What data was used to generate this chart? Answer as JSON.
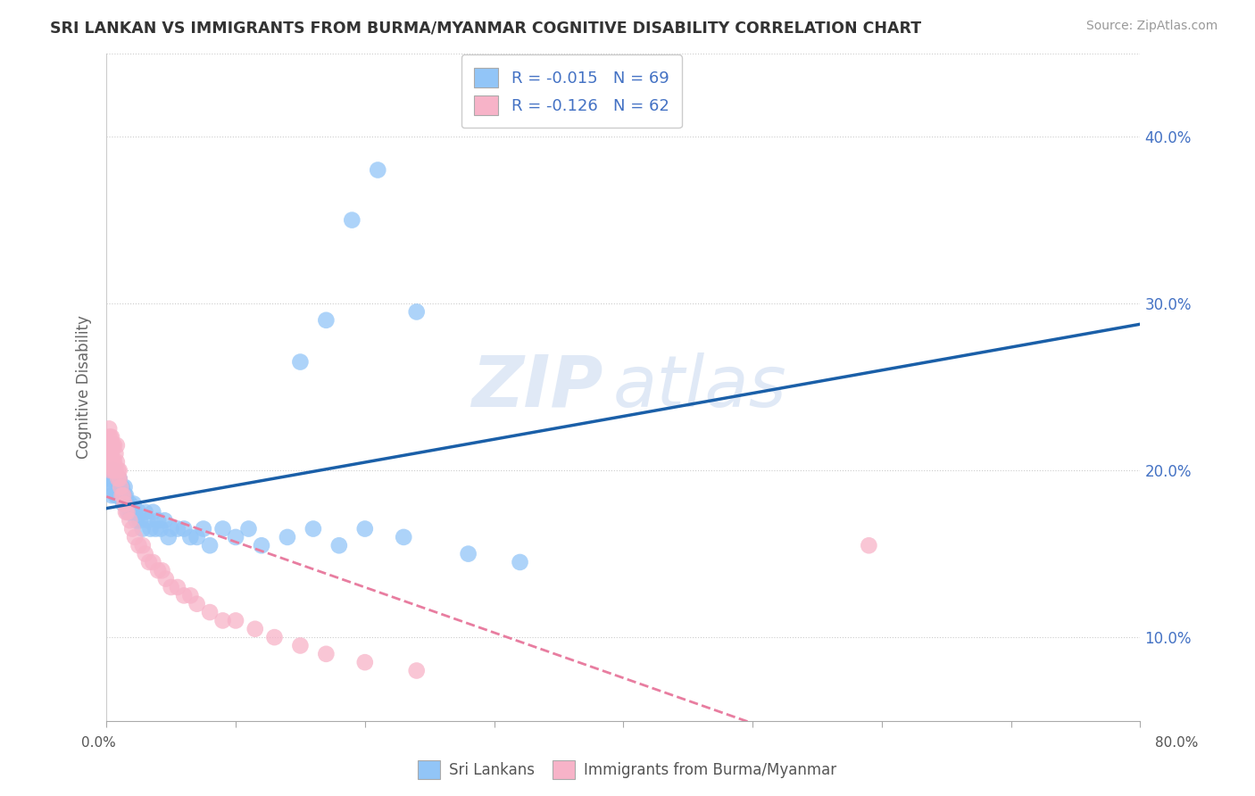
{
  "title": "SRI LANKAN VS IMMIGRANTS FROM BURMA/MYANMAR COGNITIVE DISABILITY CORRELATION CHART",
  "source": "Source: ZipAtlas.com",
  "ylabel": "Cognitive Disability",
  "ytick_labels": [
    "10.0%",
    "20.0%",
    "30.0%",
    "40.0%"
  ],
  "ytick_values": [
    0.1,
    0.2,
    0.3,
    0.4
  ],
  "xlim": [
    0.0,
    0.8
  ],
  "ylim": [
    0.05,
    0.45
  ],
  "legend_entry1": "R = -0.015   N = 69",
  "legend_entry2": "R = -0.126   N = 62",
  "sri_lankan_color": "#92c5f7",
  "burma_color": "#f7b3c8",
  "sri_lankan_line_color": "#1a5fa8",
  "burma_line_color": "#e87da0",
  "watermark_zip": "ZIP",
  "watermark_atlas": "atlas",
  "sri_lankans_label": "Sri Lankans",
  "burma_label": "Immigrants from Burma/Myanmar",
  "sri_lankans_x": [
    0.002,
    0.003,
    0.004,
    0.005,
    0.005,
    0.006,
    0.006,
    0.007,
    0.007,
    0.008,
    0.008,
    0.009,
    0.009,
    0.01,
    0.01,
    0.01,
    0.011,
    0.011,
    0.012,
    0.012,
    0.013,
    0.013,
    0.014,
    0.014,
    0.015,
    0.015,
    0.016,
    0.017,
    0.018,
    0.019,
    0.02,
    0.021,
    0.022,
    0.023,
    0.025,
    0.026,
    0.028,
    0.03,
    0.032,
    0.034,
    0.036,
    0.038,
    0.04,
    0.042,
    0.045,
    0.048,
    0.05,
    0.055,
    0.06,
    0.065,
    0.07,
    0.075,
    0.08,
    0.09,
    0.1,
    0.11,
    0.12,
    0.14,
    0.16,
    0.18,
    0.2,
    0.23,
    0.15,
    0.17,
    0.19,
    0.21,
    0.24,
    0.28,
    0.32
  ],
  "sri_lankans_y": [
    0.195,
    0.19,
    0.185,
    0.2,
    0.195,
    0.195,
    0.19,
    0.185,
    0.195,
    0.185,
    0.19,
    0.185,
    0.195,
    0.185,
    0.19,
    0.195,
    0.185,
    0.19,
    0.185,
    0.19,
    0.185,
    0.18,
    0.185,
    0.19,
    0.18,
    0.185,
    0.18,
    0.175,
    0.18,
    0.175,
    0.175,
    0.18,
    0.175,
    0.17,
    0.175,
    0.17,
    0.165,
    0.175,
    0.17,
    0.165,
    0.175,
    0.165,
    0.17,
    0.165,
    0.17,
    0.16,
    0.165,
    0.165,
    0.165,
    0.16,
    0.16,
    0.165,
    0.155,
    0.165,
    0.16,
    0.165,
    0.155,
    0.16,
    0.165,
    0.155,
    0.165,
    0.16,
    0.265,
    0.29,
    0.35,
    0.38,
    0.295,
    0.15,
    0.145
  ],
  "burma_x": [
    0.001,
    0.001,
    0.001,
    0.002,
    0.002,
    0.002,
    0.002,
    0.003,
    0.003,
    0.003,
    0.003,
    0.003,
    0.004,
    0.004,
    0.004,
    0.004,
    0.005,
    0.005,
    0.005,
    0.006,
    0.006,
    0.006,
    0.007,
    0.007,
    0.008,
    0.008,
    0.009,
    0.009,
    0.01,
    0.01,
    0.011,
    0.012,
    0.013,
    0.014,
    0.015,
    0.016,
    0.018,
    0.02,
    0.022,
    0.025,
    0.028,
    0.03,
    0.033,
    0.036,
    0.04,
    0.043,
    0.046,
    0.05,
    0.055,
    0.06,
    0.065,
    0.07,
    0.08,
    0.09,
    0.1,
    0.115,
    0.13,
    0.15,
    0.17,
    0.2,
    0.24,
    0.59
  ],
  "burma_y": [
    0.21,
    0.215,
    0.205,
    0.22,
    0.215,
    0.225,
    0.21,
    0.22,
    0.215,
    0.21,
    0.205,
    0.2,
    0.22,
    0.215,
    0.21,
    0.205,
    0.215,
    0.205,
    0.2,
    0.215,
    0.205,
    0.2,
    0.21,
    0.2,
    0.215,
    0.205,
    0.2,
    0.195,
    0.2,
    0.195,
    0.19,
    0.185,
    0.185,
    0.18,
    0.175,
    0.175,
    0.17,
    0.165,
    0.16,
    0.155,
    0.155,
    0.15,
    0.145,
    0.145,
    0.14,
    0.14,
    0.135,
    0.13,
    0.13,
    0.125,
    0.125,
    0.12,
    0.115,
    0.11,
    0.11,
    0.105,
    0.1,
    0.095,
    0.09,
    0.085,
    0.08,
    0.155
  ]
}
